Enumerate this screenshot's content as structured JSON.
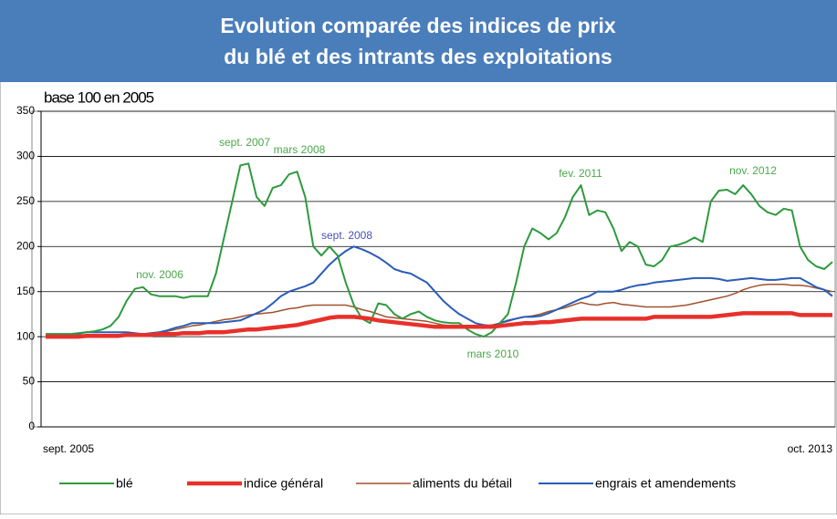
{
  "chart_data": {
    "type": "line",
    "title": [
      "Evolution comparée des indices de prix",
      "du blé et des intrants des exploitations"
    ],
    "subtitle": "base 100 en 2005",
    "categories": [
      "sept. 2005",
      null,
      null,
      null,
      null,
      null,
      null,
      null,
      null,
      null,
      null,
      null,
      null,
      null,
      null,
      null,
      null,
      null,
      null,
      null,
      null,
      null,
      null,
      null,
      null,
      null,
      null,
      null,
      null,
      null,
      null,
      null,
      null,
      null,
      null,
      null,
      null,
      null,
      null,
      null,
      null,
      null,
      null,
      null,
      null,
      null,
      null,
      null,
      null,
      null,
      null,
      null,
      null,
      null,
      null,
      null,
      null,
      null,
      null,
      null,
      null,
      null,
      null,
      null,
      null,
      null,
      null,
      null,
      null,
      null,
      null,
      null,
      null,
      null,
      null,
      null,
      null,
      null,
      null,
      null,
      null,
      null,
      null,
      null,
      null,
      null,
      null,
      null,
      null,
      null,
      null,
      null,
      null,
      null,
      null,
      null,
      null,
      "oct. 2013"
    ],
    "ylim": [
      0,
      350
    ],
    "yticks": [
      0,
      50,
      100,
      150,
      200,
      250,
      300,
      350
    ],
    "grid": true,
    "series": [
      {
        "name": "blé",
        "color": "#2e9a3e",
        "values": [
          103,
          103,
          103,
          103,
          104,
          105,
          106,
          108,
          112,
          122,
          140,
          153,
          155,
          147,
          145,
          145,
          145,
          143,
          145,
          145,
          145,
          170,
          210,
          250,
          290,
          292,
          255,
          245,
          265,
          268,
          280,
          283,
          255,
          200,
          190,
          200,
          190,
          160,
          135,
          120,
          115,
          137,
          135,
          125,
          120,
          125,
          128,
          122,
          118,
          116,
          115,
          115,
          108,
          103,
          100,
          105,
          115,
          125,
          160,
          200,
          220,
          215,
          208,
          215,
          232,
          255,
          268,
          235,
          240,
          238,
          220,
          195,
          205,
          200,
          180,
          178,
          185,
          200,
          202,
          205,
          210,
          205,
          250,
          262,
          263,
          258,
          268,
          258,
          245,
          238,
          235,
          242,
          240,
          200,
          185,
          178,
          175,
          183
        ]
      },
      {
        "name": "indice général",
        "color": "#e8302a",
        "values": [
          100,
          100,
          100,
          100,
          100,
          101,
          101,
          101,
          101,
          101,
          102,
          102,
          102,
          102,
          103,
          103,
          103,
          104,
          104,
          104,
          105,
          105,
          105,
          106,
          107,
          108,
          108,
          109,
          110,
          111,
          112,
          113,
          115,
          117,
          119,
          121,
          122,
          122,
          122,
          121,
          120,
          118,
          117,
          116,
          115,
          114,
          113,
          112,
          111,
          111,
          111,
          111,
          111,
          111,
          111,
          111,
          112,
          113,
          114,
          115,
          115,
          116,
          116,
          117,
          118,
          119,
          120,
          120,
          120,
          120,
          120,
          120,
          120,
          120,
          120,
          122,
          122,
          122,
          122,
          122,
          122,
          122,
          122,
          123,
          124,
          125,
          126,
          126,
          126,
          126,
          126,
          126,
          126,
          124,
          124,
          124,
          124,
          124
        ]
      },
      {
        "name": "aliments du bétail",
        "color": "#a0522d",
        "values": [
          100,
          100,
          100,
          100,
          100,
          100,
          100,
          101,
          101,
          101,
          101,
          102,
          103,
          104,
          105,
          106,
          108,
          110,
          112,
          113,
          115,
          117,
          119,
          120,
          122,
          124,
          125,
          126,
          127,
          129,
          131,
          132,
          134,
          135,
          135,
          135,
          135,
          135,
          133,
          130,
          128,
          125,
          122,
          121,
          120,
          119,
          118,
          117,
          115,
          113,
          112,
          111,
          110,
          110,
          112,
          113,
          115,
          117,
          120,
          122,
          123,
          125,
          128,
          130,
          132,
          135,
          138,
          136,
          135,
          137,
          138,
          136,
          135,
          134,
          133,
          133,
          133,
          133,
          134,
          135,
          137,
          139,
          141,
          143,
          145,
          148,
          152,
          155,
          157,
          158,
          158,
          158,
          157,
          157,
          156,
          154,
          152,
          150
        ]
      },
      {
        "name": "engrais et amendements",
        "color": "#2a5cb8",
        "values": [
          103,
          103,
          103,
          103,
          103,
          105,
          105,
          105,
          105,
          105,
          105,
          104,
          103,
          104,
          105,
          107,
          110,
          112,
          115,
          115,
          115,
          115,
          116,
          117,
          118,
          122,
          126,
          130,
          137,
          145,
          150,
          153,
          156,
          160,
          170,
          180,
          188,
          195,
          200,
          197,
          193,
          188,
          182,
          175,
          172,
          170,
          165,
          160,
          150,
          140,
          132,
          125,
          120,
          115,
          113,
          112,
          115,
          118,
          120,
          122,
          122,
          123,
          126,
          130,
          134,
          138,
          142,
          145,
          150,
          150,
          150,
          152,
          155,
          157,
          158,
          160,
          161,
          162,
          163,
          164,
          165,
          165,
          165,
          164,
          162,
          163,
          164,
          165,
          164,
          163,
          163,
          164,
          165,
          165,
          160,
          155,
          152,
          145
        ]
      }
    ],
    "annotations": [
      {
        "text": "nov. 2006",
        "color": "#4aa84a"
      },
      {
        "text": "sept. 2007",
        "color": "#4aa84a"
      },
      {
        "text": "mars 2008",
        "color": "#4aa84a"
      },
      {
        "text": "sept. 2008",
        "color": "#4a52b8"
      },
      {
        "text": "mars 2010",
        "color": "#4aa84a"
      },
      {
        "text": "fev. 2011",
        "color": "#4aa84a"
      },
      {
        "text": "nov. 2012",
        "color": "#4aa84a"
      }
    ]
  }
}
